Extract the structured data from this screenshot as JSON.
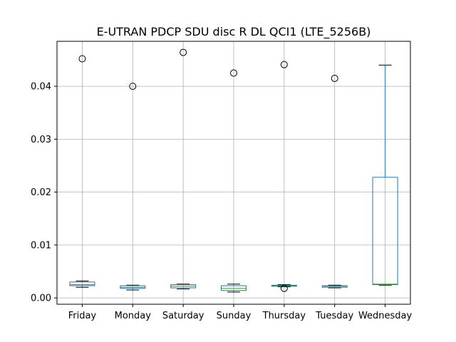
{
  "chart_data": {
    "type": "box",
    "title": "E-UTRAN PDCP SDU disc R DL QCI1 (LTE_5256B)",
    "xlabel": "",
    "ylabel": "",
    "categories": [
      "Friday",
      "Monday",
      "Saturday",
      "Sunday",
      "Thursday",
      "Tuesday",
      "Wednesday"
    ],
    "ylim": [
      -0.0012,
      0.0485
    ],
    "yticks": [
      0.0,
      0.01,
      0.02,
      0.03,
      0.04
    ],
    "ytick_labels": [
      "0.00",
      "0.01",
      "0.02",
      "0.03",
      "0.04"
    ],
    "grid": true,
    "colors": {
      "box": "#1f77b4",
      "median": "#2ca02c",
      "whisker": "#000000",
      "flier": "#000000",
      "grid": "#b0b0b0"
    },
    "boxes": [
      {
        "category": "Friday",
        "whisker_low": 0.002,
        "q1": 0.0023,
        "median": 0.0025,
        "q3": 0.003,
        "whisker_high": 0.0032,
        "outliers": [
          0.0452
        ]
      },
      {
        "category": "Monday",
        "whisker_low": 0.0015,
        "q1": 0.0018,
        "median": 0.002,
        "q3": 0.0023,
        "whisker_high": 0.0024,
        "outliers": [
          0.04
        ]
      },
      {
        "category": "Saturday",
        "whisker_low": 0.0017,
        "q1": 0.0019,
        "median": 0.0022,
        "q3": 0.0025,
        "whisker_high": 0.0026,
        "outliers": [
          0.0464
        ]
      },
      {
        "category": "Sunday",
        "whisker_low": 0.0011,
        "q1": 0.0014,
        "median": 0.0018,
        "q3": 0.0023,
        "whisker_high": 0.0026,
        "outliers": [
          0.0425
        ]
      },
      {
        "category": "Thursday",
        "whisker_low": 0.0021,
        "q1": 0.0022,
        "median": 0.0023,
        "q3": 0.0024,
        "whisker_high": 0.0025,
        "outliers": [
          0.0441,
          0.0018
        ]
      },
      {
        "category": "Tuesday",
        "whisker_low": 0.0019,
        "q1": 0.002,
        "median": 0.0022,
        "q3": 0.0023,
        "whisker_high": 0.0024,
        "outliers": [
          0.0415
        ]
      },
      {
        "category": "Wednesday",
        "whisker_low": 0.0024,
        "q1": 0.0025,
        "median": 0.0026,
        "q3": 0.0228,
        "whisker_high": 0.044,
        "outliers": []
      }
    ]
  }
}
